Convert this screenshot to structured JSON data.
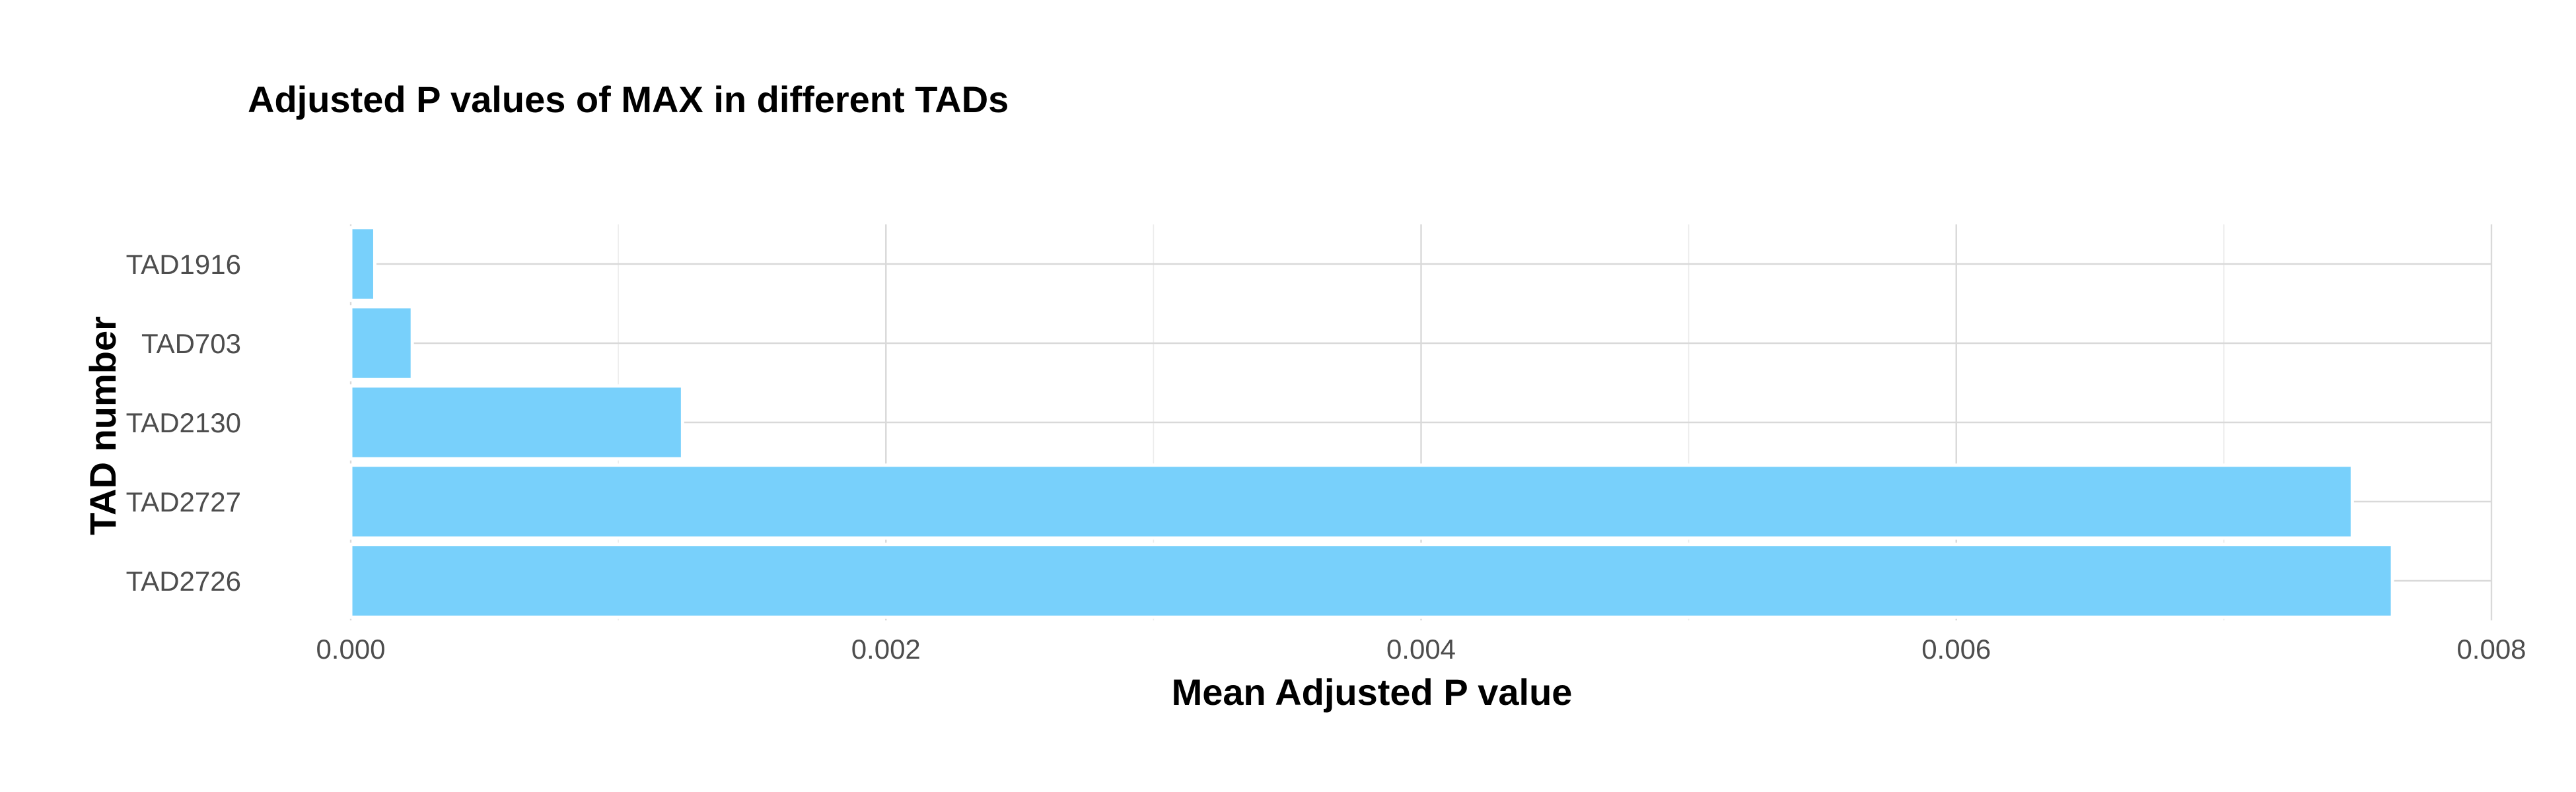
{
  "chart_data": {
    "type": "bar",
    "orientation": "horizontal",
    "title": "Adjusted P values of MAX in different TADs",
    "xlabel": "Mean Adjusted P value",
    "ylabel": "TAD number",
    "categories": [
      "TAD1916",
      "TAD703",
      "TAD2130",
      "TAD2727",
      "TAD2726"
    ],
    "values": [
      9e-05,
      0.00023,
      0.00124,
      0.00748,
      0.00763
    ],
    "xlim": [
      0,
      0.008
    ],
    "xticks": [
      0,
      0.002,
      0.004,
      0.006,
      0.008
    ],
    "xtick_labels": [
      "0.000",
      "0.002",
      "0.004",
      "0.006",
      "0.008"
    ],
    "grid": true,
    "bar_color": "#75CFFB"
  }
}
